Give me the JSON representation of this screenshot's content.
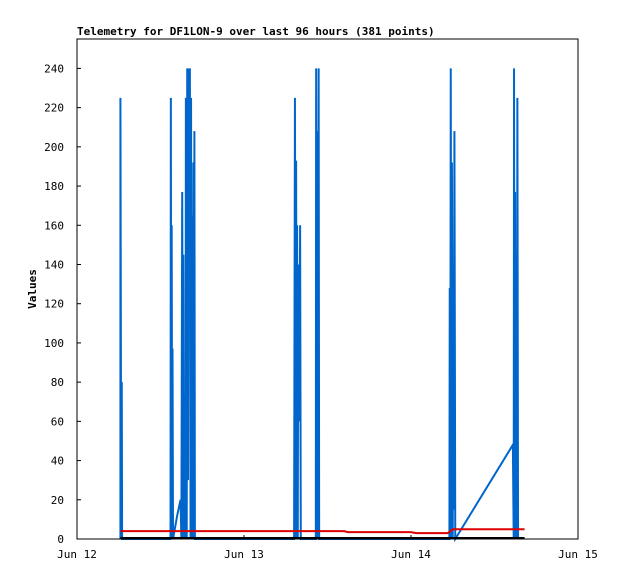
{
  "chart_data": {
    "type": "line",
    "title": "Telemetry for DF1LON-9 over last 96 hours (381 points)",
    "ylabel": "Values",
    "xlabel": "",
    "x_ticks": [
      "Jun 12",
      "Jun 13",
      "Jun 14",
      "Jun 15"
    ],
    "y_ticks": [
      0,
      20,
      40,
      60,
      80,
      100,
      120,
      140,
      160,
      180,
      200,
      220,
      240
    ],
    "xlim": [
      0,
      3
    ],
    "ylim": [
      0,
      255
    ],
    "grid": false,
    "legend": "none",
    "series": [
      {
        "color": "#0066cc",
        "points": [
          [
            0.26,
            0
          ],
          [
            0.26,
            225
          ],
          [
            0.265,
            0
          ],
          [
            0.268,
            80
          ],
          [
            0.27,
            0
          ],
          [
            0.56,
            0
          ],
          [
            0.562,
            225
          ],
          [
            0.565,
            0
          ],
          [
            0.567,
            160
          ],
          [
            0.57,
            0
          ],
          [
            0.572,
            97
          ],
          [
            0.575,
            0
          ],
          [
            0.6,
            12
          ],
          [
            0.62,
            20
          ],
          [
            0.625,
            0
          ],
          [
            0.63,
            177
          ],
          [
            0.635,
            0
          ],
          [
            0.637,
            145
          ],
          [
            0.64,
            0
          ],
          [
            0.645,
            73
          ],
          [
            0.65,
            0
          ],
          [
            0.652,
            225
          ],
          [
            0.657,
            0
          ],
          [
            0.66,
            240
          ],
          [
            0.665,
            30
          ],
          [
            0.668,
            240
          ],
          [
            0.672,
            120
          ],
          [
            0.676,
            240
          ],
          [
            0.68,
            0
          ],
          [
            0.683,
            225
          ],
          [
            0.687,
            0
          ],
          [
            0.69,
            165
          ],
          [
            0.695,
            0
          ],
          [
            0.697,
            192
          ],
          [
            0.7,
            0
          ],
          [
            0.703,
            208
          ],
          [
            0.706,
            0
          ],
          [
            1.3,
            0
          ],
          [
            1.305,
            225
          ],
          [
            1.31,
            0
          ],
          [
            1.312,
            193
          ],
          [
            1.316,
            20
          ],
          [
            1.318,
            160
          ],
          [
            1.322,
            0
          ],
          [
            1.324,
            100
          ],
          [
            1.327,
            60
          ],
          [
            1.33,
            140
          ],
          [
            1.333,
            80
          ],
          [
            1.336,
            160
          ],
          [
            1.34,
            0
          ],
          [
            1.43,
            0
          ],
          [
            1.432,
            240
          ],
          [
            1.436,
            0
          ],
          [
            1.44,
            208
          ],
          [
            1.444,
            0
          ],
          [
            1.447,
            240
          ],
          [
            1.45,
            0
          ],
          [
            2.23,
            0
          ],
          [
            2.232,
            128
          ],
          [
            2.235,
            0
          ],
          [
            2.238,
            240
          ],
          [
            2.242,
            0
          ],
          [
            2.245,
            192
          ],
          [
            2.25,
            0
          ],
          [
            2.252,
            104
          ],
          [
            2.256,
            15
          ],
          [
            2.26,
            208
          ],
          [
            2.265,
            0
          ],
          [
            2.61,
            48
          ],
          [
            2.615,
            0
          ],
          [
            2.617,
            240
          ],
          [
            2.62,
            0
          ],
          [
            2.623,
            177
          ],
          [
            2.627,
            0
          ],
          [
            2.63,
            145
          ],
          [
            2.634,
            0
          ],
          [
            2.637,
            225
          ],
          [
            2.641,
            0
          ]
        ]
      },
      {
        "color": "#dd0000",
        "points": [
          [
            0.26,
            4
          ],
          [
            1.6,
            4
          ],
          [
            1.62,
            3.5
          ],
          [
            2.0,
            3.5
          ],
          [
            2.03,
            3
          ],
          [
            2.22,
            3
          ],
          [
            2.25,
            5
          ],
          [
            2.68,
            5
          ]
        ]
      },
      {
        "color": "#000000",
        "points": [
          [
            0.26,
            0.5
          ],
          [
            2.68,
            0.5
          ]
        ]
      }
    ]
  }
}
